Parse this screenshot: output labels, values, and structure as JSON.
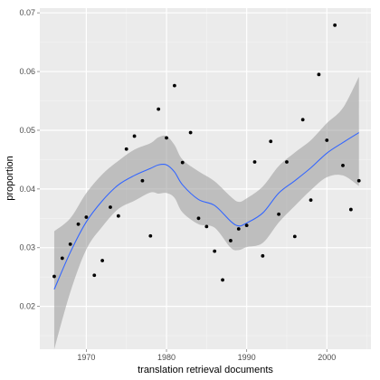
{
  "chart_data": {
    "type": "scatter",
    "xlabel": "translation retrieval documents",
    "ylabel": "proportion",
    "xlim": [
      1964.2,
      2005.5
    ],
    "ylim": [
      0.0127,
      0.0708
    ],
    "x_ticks": [
      1970,
      1980,
      1990,
      2000
    ],
    "x_tick_labels": [
      "1970",
      "1980",
      "1990",
      "2000"
    ],
    "y_ticks": [
      0.02,
      0.03,
      0.04,
      0.05,
      0.06,
      0.07
    ],
    "y_tick_labels": [
      "0.02",
      "0.03",
      "0.04",
      "0.05",
      "0.06",
      "0.07"
    ],
    "grid": true,
    "points": [
      {
        "x": 1966,
        "y": 0.0251
      },
      {
        "x": 1967,
        "y": 0.0282
      },
      {
        "x": 1968,
        "y": 0.0306
      },
      {
        "x": 1969,
        "y": 0.034
      },
      {
        "x": 1970,
        "y": 0.0352
      },
      {
        "x": 1971,
        "y": 0.0253
      },
      {
        "x": 1972,
        "y": 0.0278
      },
      {
        "x": 1973,
        "y": 0.0369
      },
      {
        "x": 1974,
        "y": 0.0354
      },
      {
        "x": 1975,
        "y": 0.0468
      },
      {
        "x": 1976,
        "y": 0.049
      },
      {
        "x": 1977,
        "y": 0.0414
      },
      {
        "x": 1978,
        "y": 0.032
      },
      {
        "x": 1979,
        "y": 0.0536
      },
      {
        "x": 1980,
        "y": 0.0487
      },
      {
        "x": 1981,
        "y": 0.0576
      },
      {
        "x": 1982,
        "y": 0.0445
      },
      {
        "x": 1983,
        "y": 0.0496
      },
      {
        "x": 1984,
        "y": 0.035
      },
      {
        "x": 1985,
        "y": 0.0336
      },
      {
        "x": 1986,
        "y": 0.0294
      },
      {
        "x": 1987,
        "y": 0.0245
      },
      {
        "x": 1988,
        "y": 0.0312
      },
      {
        "x": 1989,
        "y": 0.0332
      },
      {
        "x": 1990,
        "y": 0.0338
      },
      {
        "x": 1991,
        "y": 0.0446
      },
      {
        "x": 1992,
        "y": 0.0286
      },
      {
        "x": 1993,
        "y": 0.0481
      },
      {
        "x": 1994,
        "y": 0.0357
      },
      {
        "x": 1995,
        "y": 0.0446
      },
      {
        "x": 1996,
        "y": 0.0319
      },
      {
        "x": 1997,
        "y": 0.0518
      },
      {
        "x": 1998,
        "y": 0.0381
      },
      {
        "x": 1999,
        "y": 0.0595
      },
      {
        "x": 2000,
        "y": 0.0483
      },
      {
        "x": 2001,
        "y": 0.0679
      },
      {
        "x": 2002,
        "y": 0.044
      },
      {
        "x": 2003,
        "y": 0.0365
      },
      {
        "x": 2004,
        "y": 0.0414
      }
    ],
    "smooth": {
      "x": [
        1966,
        1968,
        1970,
        1972,
        1974,
        1976,
        1978,
        1979,
        1980,
        1981,
        1982,
        1984,
        1986,
        1988,
        1989,
        1990,
        1992,
        1994,
        1996,
        1998,
        2000,
        2002,
        2004
      ],
      "y": [
        0.0229,
        0.0292,
        0.0344,
        0.038,
        0.0407,
        0.0423,
        0.0435,
        0.0441,
        0.0441,
        0.0429,
        0.0407,
        0.0382,
        0.0372,
        0.0345,
        0.0337,
        0.0342,
        0.0359,
        0.0393,
        0.0414,
        0.0436,
        0.0461,
        0.0479,
        0.0496
      ]
    },
    "confidence_band": {
      "lower": [
        0.0127,
        0.0224,
        0.0297,
        0.0336,
        0.0366,
        0.038,
        0.0394,
        0.0392,
        0.0393,
        0.0385,
        0.036,
        0.034,
        0.0334,
        0.03,
        0.0296,
        0.0301,
        0.0308,
        0.0343,
        0.0371,
        0.0398,
        0.042,
        0.0423,
        0.0405
      ],
      "upper": [
        0.0328,
        0.035,
        0.0393,
        0.0425,
        0.0448,
        0.0467,
        0.0478,
        0.0488,
        0.049,
        0.0475,
        0.045,
        0.043,
        0.0413,
        0.0387,
        0.0378,
        0.0384,
        0.0404,
        0.0439,
        0.0462,
        0.0483,
        0.0512,
        0.0538,
        0.0591
      ]
    },
    "colors": {
      "panel_background": "#ebebeb",
      "grid_major": "#ffffff",
      "grid_minor": "#f5f5f5",
      "point": "#000000",
      "smooth_line": "#3366ff",
      "band": "#999999"
    }
  }
}
